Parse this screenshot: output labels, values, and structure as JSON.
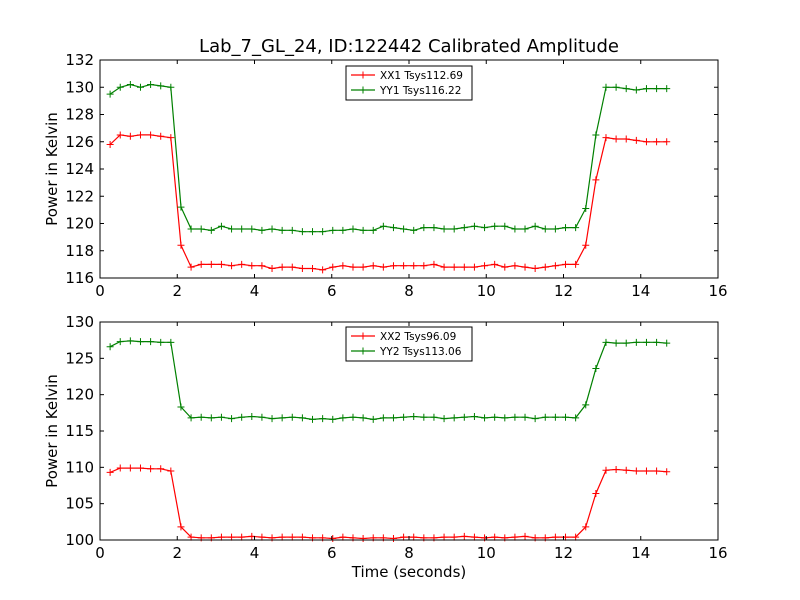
{
  "chart_data": [
    {
      "type": "line",
      "title": "Lab_7_GL_24, ID:122442 Calibrated Amplitude",
      "xlabel": "",
      "ylabel": "Power in Kelvin",
      "xlim": [
        0,
        16
      ],
      "ylim": [
        116,
        132
      ],
      "xticks": [
        0,
        2,
        4,
        6,
        8,
        10,
        12,
        14,
        16
      ],
      "yticks": [
        116,
        118,
        120,
        122,
        124,
        126,
        128,
        130,
        132
      ],
      "grid": false,
      "legend": "top-center",
      "x": [
        0.262,
        0.524,
        0.786,
        1.048,
        1.31,
        1.572,
        1.834,
        2.096,
        2.358,
        2.62,
        2.882,
        3.144,
        3.406,
        3.668,
        3.93,
        4.192,
        4.454,
        4.716,
        4.978,
        5.24,
        5.502,
        5.764,
        6.026,
        6.288,
        6.55,
        6.812,
        7.074,
        7.336,
        7.598,
        7.86,
        8.122,
        8.384,
        8.646,
        8.908,
        9.17,
        9.432,
        9.694,
        9.956,
        10.218,
        10.48,
        10.742,
        11.004,
        11.266,
        11.528,
        11.79,
        12.052,
        12.314,
        12.576,
        12.838,
        13.1,
        13.362,
        13.624,
        13.886,
        14.148,
        14.41,
        14.672
      ],
      "series": [
        {
          "name": "XX1 Tsys112.69",
          "color": "#ff0000",
          "values": [
            125.8,
            126.5,
            126.4,
            126.5,
            126.5,
            126.4,
            126.3,
            118.4,
            116.8,
            117.0,
            117.0,
            117.0,
            116.9,
            117.0,
            116.9,
            116.9,
            116.7,
            116.8,
            116.8,
            116.7,
            116.7,
            116.6,
            116.8,
            116.9,
            116.8,
            116.8,
            116.9,
            116.8,
            116.9,
            116.9,
            116.9,
            116.9,
            117.0,
            116.8,
            116.8,
            116.8,
            116.8,
            116.9,
            117.0,
            116.8,
            116.9,
            116.8,
            116.7,
            116.8,
            116.9,
            117.0,
            117.0,
            118.4,
            123.2,
            126.3,
            126.2,
            126.2,
            126.1,
            126.0,
            126.0,
            126.0
          ]
        },
        {
          "name": "YY1 Tsys116.22",
          "color": "#008000",
          "values": [
            129.5,
            130.0,
            130.2,
            130.0,
            130.2,
            130.1,
            130.0,
            121.2,
            119.6,
            119.6,
            119.5,
            119.8,
            119.6,
            119.6,
            119.6,
            119.5,
            119.6,
            119.5,
            119.5,
            119.4,
            119.4,
            119.4,
            119.5,
            119.5,
            119.6,
            119.5,
            119.5,
            119.8,
            119.7,
            119.6,
            119.5,
            119.7,
            119.7,
            119.6,
            119.6,
            119.7,
            119.8,
            119.7,
            119.8,
            119.8,
            119.6,
            119.6,
            119.8,
            119.6,
            119.6,
            119.7,
            119.7,
            121.1,
            126.5,
            130.0,
            130.0,
            129.9,
            129.8,
            129.9,
            129.9,
            129.9
          ]
        }
      ]
    },
    {
      "type": "line",
      "title": "",
      "xlabel": "Time (seconds)",
      "ylabel": "Power in Kelvin",
      "xlim": [
        0,
        16
      ],
      "ylim": [
        100,
        130
      ],
      "xticks": [
        0,
        2,
        4,
        6,
        8,
        10,
        12,
        14,
        16
      ],
      "yticks": [
        100,
        105,
        110,
        115,
        120,
        125,
        130
      ],
      "grid": false,
      "legend": "top-center",
      "x": [
        0.262,
        0.524,
        0.786,
        1.048,
        1.31,
        1.572,
        1.834,
        2.096,
        2.358,
        2.62,
        2.882,
        3.144,
        3.406,
        3.668,
        3.93,
        4.192,
        4.454,
        4.716,
        4.978,
        5.24,
        5.502,
        5.764,
        6.026,
        6.288,
        6.55,
        6.812,
        7.074,
        7.336,
        7.598,
        7.86,
        8.122,
        8.384,
        8.646,
        8.908,
        9.17,
        9.432,
        9.694,
        9.956,
        10.218,
        10.48,
        10.742,
        11.004,
        11.266,
        11.528,
        11.79,
        12.052,
        12.314,
        12.576,
        12.838,
        13.1,
        13.362,
        13.624,
        13.886,
        14.148,
        14.41,
        14.672
      ],
      "series": [
        {
          "name": "XX2 Tsys96.09",
          "color": "#ff0000",
          "values": [
            109.3,
            109.9,
            109.9,
            109.9,
            109.8,
            109.8,
            109.5,
            101.8,
            100.4,
            100.3,
            100.3,
            100.4,
            100.4,
            100.4,
            100.5,
            100.4,
            100.3,
            100.4,
            100.4,
            100.4,
            100.3,
            100.3,
            100.2,
            100.4,
            100.3,
            100.2,
            100.3,
            100.3,
            100.2,
            100.4,
            100.4,
            100.3,
            100.3,
            100.4,
            100.4,
            100.5,
            100.4,
            100.3,
            100.4,
            100.3,
            100.4,
            100.5,
            100.3,
            100.3,
            100.4,
            100.4,
            100.4,
            101.8,
            106.4,
            109.6,
            109.7,
            109.6,
            109.5,
            109.5,
            109.5,
            109.4
          ]
        },
        {
          "name": "YY2 Tsys113.06",
          "color": "#008000",
          "values": [
            126.6,
            127.3,
            127.4,
            127.3,
            127.3,
            127.2,
            127.2,
            118.3,
            116.8,
            116.9,
            116.8,
            116.9,
            116.7,
            116.9,
            117.0,
            116.9,
            116.7,
            116.8,
            116.9,
            116.8,
            116.6,
            116.7,
            116.6,
            116.8,
            116.9,
            116.8,
            116.6,
            116.8,
            116.8,
            116.9,
            117.0,
            116.9,
            116.9,
            116.7,
            116.8,
            116.9,
            117.0,
            116.8,
            116.9,
            116.8,
            116.9,
            116.9,
            116.7,
            116.9,
            116.9,
            116.9,
            116.8,
            118.6,
            123.6,
            127.2,
            127.1,
            127.1,
            127.2,
            127.2,
            127.2,
            127.1
          ]
        }
      ]
    }
  ]
}
